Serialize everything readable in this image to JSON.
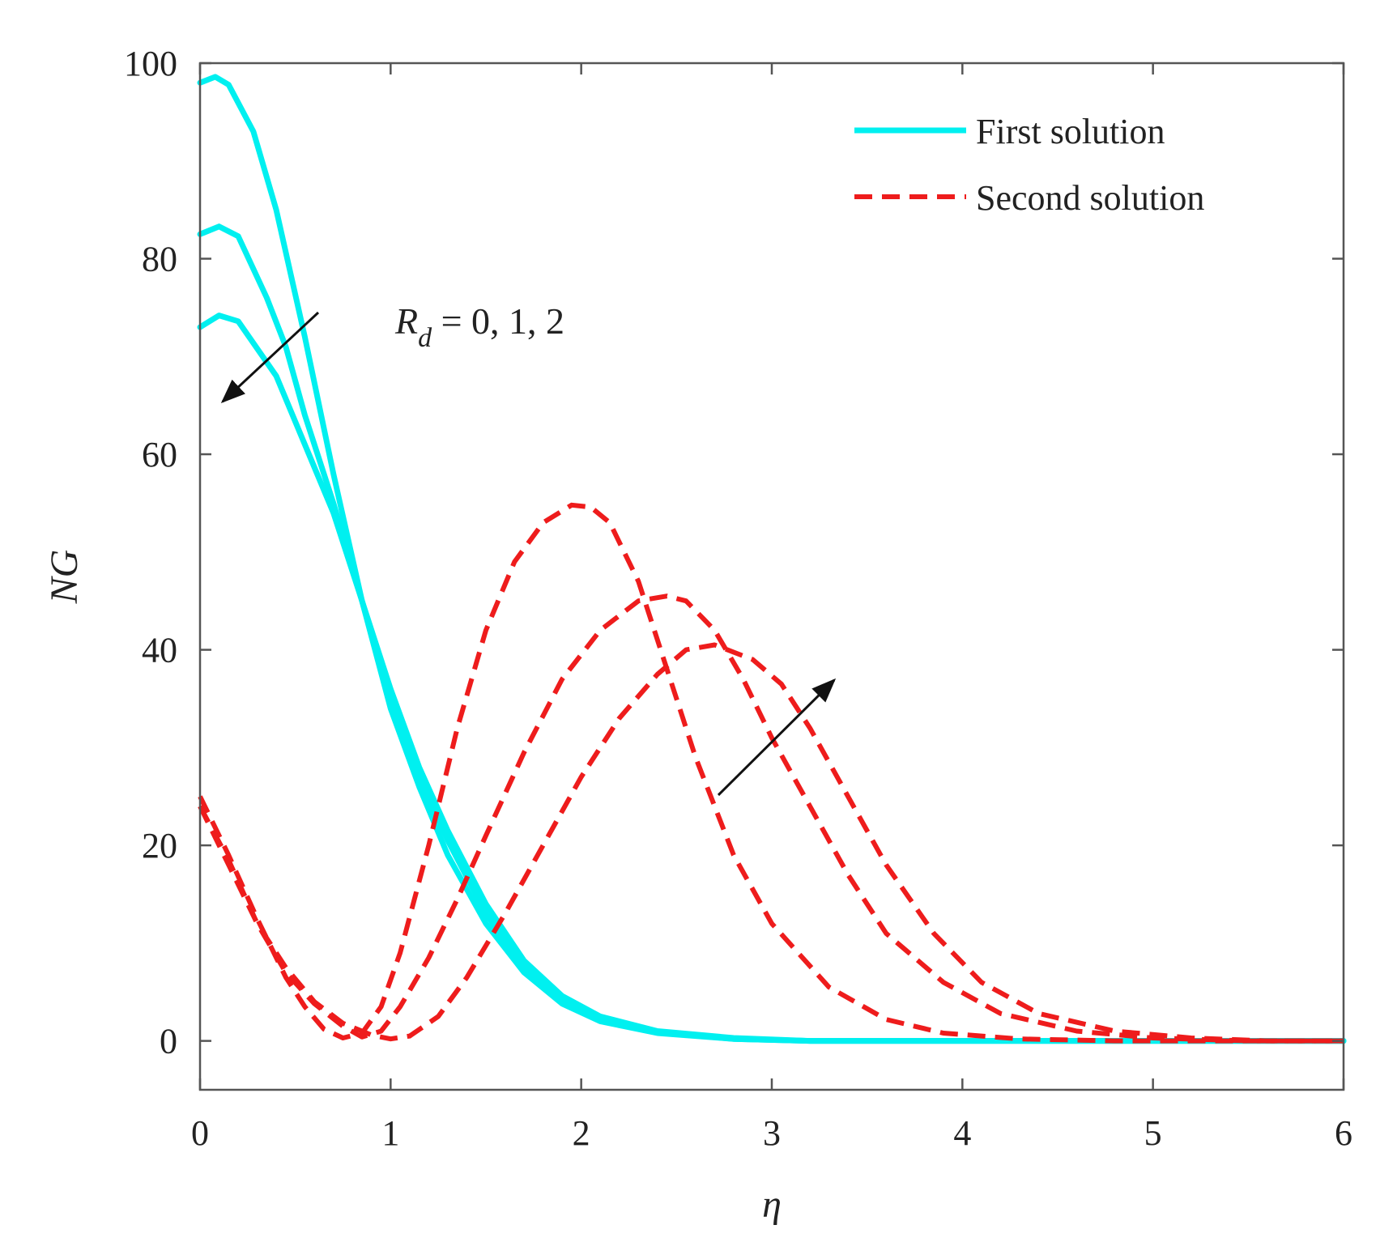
{
  "chart_data": {
    "type": "line",
    "title": "",
    "xlabel": "η",
    "ylabel": "NG",
    "xlim": [
      0,
      6
    ],
    "ylim": [
      -5,
      100
    ],
    "xticks": [
      0,
      1,
      2,
      3,
      4,
      5,
      6
    ],
    "yticks": [
      0,
      20,
      40,
      60,
      80,
      100
    ],
    "grid": false,
    "legend": {
      "position": "top-right",
      "entries": [
        {
          "label": "First solution",
          "style": "solid",
          "color": "#00f0f0"
        },
        {
          "label": "Second solution",
          "style": "dashed",
          "color": "#ee1c1c"
        }
      ]
    },
    "annotations": {
      "rd": {
        "symbol": "R",
        "subscript": "d",
        "values_text": " = 0, 1, 2"
      }
    },
    "series": [
      {
        "name": "First solution, Rd = 0",
        "style": "solid",
        "color": "#00f0f0",
        "x": [
          0,
          0.08,
          0.15,
          0.28,
          0.4,
          0.55,
          0.7,
          0.85,
          1.0,
          1.15,
          1.3,
          1.5,
          1.7,
          1.9,
          2.1,
          2.4,
          2.8,
          3.2,
          4.0,
          5.0,
          6.0
        ],
        "y": [
          98,
          98.6,
          97.8,
          93,
          85,
          72,
          58,
          45,
          34,
          26,
          19,
          12,
          7,
          3.8,
          2,
          0.8,
          0.2,
          0,
          0,
          0,
          0
        ]
      },
      {
        "name": "First solution, Rd = 1",
        "style": "solid",
        "color": "#00f0f0",
        "x": [
          0,
          0.1,
          0.2,
          0.35,
          0.45,
          0.55,
          0.7,
          0.85,
          1.0,
          1.15,
          1.3,
          1.5,
          1.7,
          1.9,
          2.1,
          2.4,
          2.8,
          3.2,
          4.0,
          5.0,
          6.0
        ],
        "y": [
          82.5,
          83.3,
          82.3,
          76,
          71,
          64,
          55,
          45,
          35,
          27,
          20.5,
          13,
          7.5,
          4.2,
          2.3,
          0.9,
          0.2,
          0,
          0,
          0,
          0
        ]
      },
      {
        "name": "First solution, Rd = 2",
        "style": "solid",
        "color": "#00f0f0",
        "x": [
          0,
          0.1,
          0.2,
          0.4,
          0.55,
          0.7,
          0.85,
          1.0,
          1.15,
          1.3,
          1.5,
          1.7,
          1.9,
          2.1,
          2.4,
          2.8,
          3.2,
          4.0,
          5.0,
          6.0
        ],
        "y": [
          73,
          74.2,
          73.6,
          68,
          61,
          54,
          45,
          36,
          28,
          21.5,
          14,
          8.2,
          4.6,
          2.5,
          1,
          0.3,
          0,
          0,
          0,
          0
        ]
      },
      {
        "name": "Second solution, Rd = 0",
        "style": "dashed",
        "color": "#ee1c1c",
        "x": [
          0,
          0.15,
          0.3,
          0.45,
          0.55,
          0.65,
          0.75,
          0.85,
          0.95,
          1.05,
          1.2,
          1.35,
          1.5,
          1.65,
          1.8,
          1.95,
          2.05,
          2.15,
          2.3,
          2.45,
          2.6,
          2.8,
          3.0,
          3.3,
          3.6,
          3.9,
          4.3,
          4.8,
          5.4,
          6.0
        ],
        "y": [
          25,
          19,
          12.5,
          6.5,
          3.5,
          1.2,
          0.3,
          0.8,
          3.5,
          9,
          20,
          32,
          42,
          49,
          53,
          54.8,
          54.6,
          53,
          47,
          38,
          29,
          19,
          12,
          5.5,
          2.2,
          0.8,
          0.2,
          0,
          0,
          0
        ]
      },
      {
        "name": "Second solution, Rd = 1",
        "style": "dashed",
        "color": "#ee1c1c",
        "x": [
          0,
          0.15,
          0.3,
          0.45,
          0.6,
          0.75,
          0.85,
          0.95,
          1.05,
          1.2,
          1.35,
          1.5,
          1.7,
          1.9,
          2.1,
          2.3,
          2.45,
          2.55,
          2.7,
          2.85,
          3.0,
          3.2,
          3.4,
          3.6,
          3.9,
          4.2,
          4.6,
          5.0,
          5.5,
          6.0
        ],
        "y": [
          24,
          18.5,
          12,
          7,
          3.8,
          1.5,
          0.4,
          1,
          3.5,
          8.5,
          14.5,
          21,
          29.5,
          37,
          42,
          45,
          45.5,
          45,
          42,
          37,
          31,
          24,
          17,
          11,
          6,
          2.8,
          1,
          0.3,
          0,
          0
        ]
      },
      {
        "name": "Second solution, Rd = 2",
        "style": "dashed",
        "color": "#ee1c1c",
        "x": [
          0,
          0.15,
          0.3,
          0.45,
          0.6,
          0.75,
          0.9,
          1.0,
          1.1,
          1.25,
          1.4,
          1.6,
          1.8,
          2.0,
          2.2,
          2.4,
          2.55,
          2.7,
          2.9,
          3.05,
          3.2,
          3.4,
          3.6,
          3.85,
          4.1,
          4.4,
          4.8,
          5.2,
          5.6,
          6.0
        ],
        "y": [
          24,
          18,
          12,
          7.5,
          4,
          1.8,
          0.6,
          0.2,
          0.5,
          2.5,
          6.5,
          13,
          20,
          27,
          33,
          37.5,
          40,
          40.5,
          39,
          36.5,
          32,
          25,
          18,
          11,
          6,
          2.8,
          1,
          0.3,
          0,
          0
        ]
      }
    ]
  }
}
